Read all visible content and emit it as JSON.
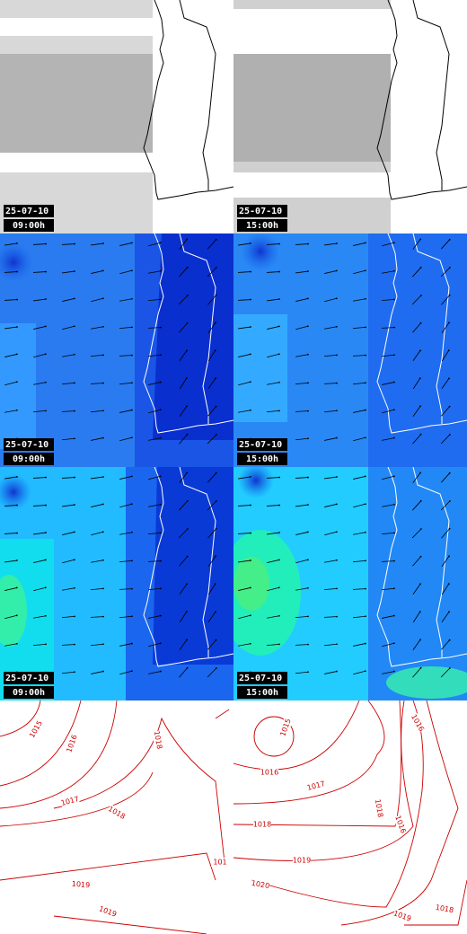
{
  "panels": [
    {
      "date": "25-07-10",
      "time": "09:00h"
    },
    {
      "date": "25-07-10",
      "time": "15:00h"
    },
    {
      "date": "25-07-10",
      "time": "09:00h"
    },
    {
      "date": "25-07-10",
      "time": "15:00h"
    },
    {
      "date": "25-07-10",
      "time": "09:00h"
    },
    {
      "date": "25-07-10",
      "time": "15:00h"
    }
  ],
  "isobars": {
    "left": [
      "1015",
      "1016",
      "1018",
      "1017",
      "1018",
      "1019",
      "1019",
      "101"
    ],
    "right": [
      "1015",
      "1016",
      "1017",
      "1018",
      "1018",
      "1016",
      "1019",
      "1020",
      "1016",
      "1018",
      "1019"
    ]
  }
}
